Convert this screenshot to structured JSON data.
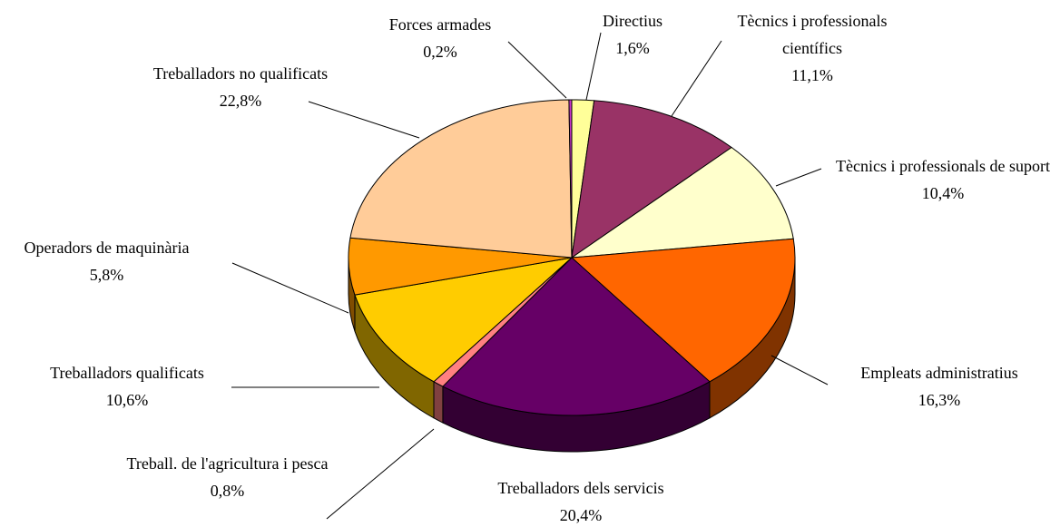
{
  "chart_data": {
    "type": "pie",
    "categories": [
      "Directius",
      "Tècnics i professionals científics",
      "Tècnics i professionals de suport",
      "Empleats administratius",
      "Treballadors dels servicis",
      "Treball. de l'agricultura i pesca",
      "Treballadors qualificats",
      "Operadors de maquinària",
      "Treballadors no qualificats",
      "Forces armades"
    ],
    "values": [
      1.6,
      11.1,
      10.4,
      16.3,
      20.4,
      0.8,
      10.6,
      5.8,
      22.8,
      0.2
    ],
    "value_labels": [
      "1,6%",
      "11,1%",
      "10,4%",
      "16,3%",
      "20,4%",
      "0,8%",
      "10,6%",
      "5,8%",
      "22,8%",
      "0,2%"
    ],
    "colors": [
      "#ffff99",
      "#993366",
      "#ffffcc",
      "#ff6600",
      "#660066",
      "#ff8080",
      "#ffcc00",
      "#ff9900",
      "#ffcc99",
      "#cc33cc"
    ]
  }
}
